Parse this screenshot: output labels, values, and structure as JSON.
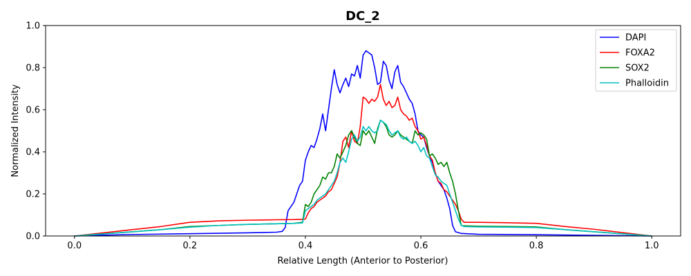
{
  "chart_data": {
    "type": "line",
    "title": "DC_2",
    "xlabel": "Relative Length (Anterior to Posterior)",
    "ylabel": "Normalized Intensity",
    "xlim": [
      -0.05,
      1.05
    ],
    "ylim": [
      0.0,
      1.0
    ],
    "xticks": [
      0.0,
      0.2,
      0.4,
      0.6,
      0.8,
      1.0
    ],
    "xtick_labels": [
      "0.0",
      "0.2",
      "0.4",
      "0.6",
      "0.8",
      "1.0"
    ],
    "yticks": [
      0.0,
      0.2,
      0.4,
      0.6,
      0.8,
      1.0
    ],
    "ytick_labels": [
      "0.0",
      "0.2",
      "0.4",
      "0.6",
      "0.8",
      "1.0"
    ],
    "grid": false,
    "legend_position": "top-right",
    "series": [
      {
        "name": "DAPI",
        "color": "#0000ff",
        "x": [
          0.0,
          0.05,
          0.1,
          0.15,
          0.2,
          0.25,
          0.3,
          0.35,
          0.36,
          0.365,
          0.37,
          0.375,
          0.38,
          0.385,
          0.39,
          0.395,
          0.4,
          0.405,
          0.41,
          0.415,
          0.42,
          0.425,
          0.43,
          0.435,
          0.44,
          0.445,
          0.45,
          0.455,
          0.46,
          0.465,
          0.47,
          0.475,
          0.48,
          0.485,
          0.49,
          0.495,
          0.5,
          0.505,
          0.51,
          0.515,
          0.52,
          0.525,
          0.53,
          0.535,
          0.54,
          0.545,
          0.55,
          0.555,
          0.56,
          0.565,
          0.57,
          0.575,
          0.58,
          0.585,
          0.59,
          0.595,
          0.6,
          0.605,
          0.61,
          0.615,
          0.62,
          0.625,
          0.63,
          0.635,
          0.64,
          0.645,
          0.65,
          0.655,
          0.66,
          0.67,
          0.7,
          0.8,
          0.9,
          1.0
        ],
        "y": [
          0.0,
          0.004,
          0.007,
          0.009,
          0.011,
          0.013,
          0.015,
          0.018,
          0.022,
          0.04,
          0.12,
          0.14,
          0.16,
          0.2,
          0.24,
          0.26,
          0.36,
          0.4,
          0.43,
          0.42,
          0.46,
          0.51,
          0.58,
          0.5,
          0.6,
          0.7,
          0.79,
          0.72,
          0.68,
          0.72,
          0.75,
          0.71,
          0.77,
          0.76,
          0.81,
          0.75,
          0.86,
          0.88,
          0.87,
          0.86,
          0.8,
          0.72,
          0.73,
          0.83,
          0.81,
          0.74,
          0.7,
          0.78,
          0.81,
          0.73,
          0.71,
          0.68,
          0.65,
          0.63,
          0.58,
          0.5,
          0.48,
          0.47,
          0.42,
          0.38,
          0.35,
          0.3,
          0.26,
          0.24,
          0.22,
          0.18,
          0.13,
          0.05,
          0.02,
          0.012,
          0.008,
          0.006,
          0.003,
          0.0
        ]
      },
      {
        "name": "FOXA2",
        "color": "#ff0000",
        "x": [
          0.0,
          0.05,
          0.1,
          0.15,
          0.2,
          0.25,
          0.3,
          0.35,
          0.38,
          0.4,
          0.405,
          0.41,
          0.415,
          0.42,
          0.425,
          0.43,
          0.435,
          0.44,
          0.445,
          0.45,
          0.455,
          0.46,
          0.465,
          0.47,
          0.475,
          0.48,
          0.485,
          0.49,
          0.495,
          0.5,
          0.505,
          0.51,
          0.515,
          0.52,
          0.525,
          0.53,
          0.535,
          0.54,
          0.545,
          0.55,
          0.555,
          0.56,
          0.565,
          0.57,
          0.575,
          0.58,
          0.585,
          0.59,
          0.595,
          0.6,
          0.605,
          0.61,
          0.615,
          0.62,
          0.625,
          0.63,
          0.635,
          0.64,
          0.645,
          0.65,
          0.655,
          0.66,
          0.665,
          0.67,
          0.675,
          0.7,
          0.75,
          0.8,
          0.85,
          0.9,
          0.95,
          1.0
        ],
        "y": [
          0.0,
          0.015,
          0.03,
          0.045,
          0.065,
          0.072,
          0.075,
          0.077,
          0.078,
          0.08,
          0.11,
          0.13,
          0.14,
          0.16,
          0.17,
          0.18,
          0.19,
          0.21,
          0.22,
          0.25,
          0.28,
          0.35,
          0.45,
          0.47,
          0.42,
          0.5,
          0.45,
          0.44,
          0.52,
          0.66,
          0.65,
          0.63,
          0.65,
          0.64,
          0.66,
          0.72,
          0.65,
          0.62,
          0.64,
          0.61,
          0.62,
          0.66,
          0.6,
          0.58,
          0.57,
          0.55,
          0.56,
          0.52,
          0.5,
          0.46,
          0.47,
          0.43,
          0.38,
          0.36,
          0.3,
          0.26,
          0.25,
          0.22,
          0.21,
          0.19,
          0.17,
          0.15,
          0.12,
          0.08,
          0.065,
          0.065,
          0.063,
          0.06,
          0.045,
          0.032,
          0.016,
          0.0
        ]
      },
      {
        "name": "SOX2",
        "color": "#008000",
        "x": [
          0.0,
          0.05,
          0.1,
          0.15,
          0.2,
          0.25,
          0.3,
          0.35,
          0.38,
          0.395,
          0.4,
          0.405,
          0.41,
          0.415,
          0.42,
          0.425,
          0.43,
          0.435,
          0.44,
          0.445,
          0.45,
          0.455,
          0.46,
          0.465,
          0.47,
          0.475,
          0.48,
          0.485,
          0.49,
          0.495,
          0.5,
          0.505,
          0.51,
          0.515,
          0.52,
          0.525,
          0.53,
          0.535,
          0.54,
          0.545,
          0.55,
          0.555,
          0.56,
          0.565,
          0.57,
          0.575,
          0.58,
          0.585,
          0.59,
          0.595,
          0.6,
          0.605,
          0.61,
          0.615,
          0.62,
          0.625,
          0.63,
          0.635,
          0.64,
          0.645,
          0.65,
          0.655,
          0.66,
          0.665,
          0.67,
          0.675,
          0.7,
          0.75,
          0.8,
          0.85,
          0.9,
          0.95,
          1.0
        ],
        "y": [
          0.0,
          0.01,
          0.02,
          0.03,
          0.045,
          0.05,
          0.055,
          0.058,
          0.06,
          0.065,
          0.15,
          0.14,
          0.16,
          0.2,
          0.22,
          0.24,
          0.28,
          0.27,
          0.3,
          0.3,
          0.33,
          0.39,
          0.37,
          0.4,
          0.43,
          0.48,
          0.5,
          0.47,
          0.44,
          0.43,
          0.5,
          0.48,
          0.5,
          0.47,
          0.44,
          0.51,
          0.55,
          0.54,
          0.52,
          0.48,
          0.47,
          0.48,
          0.5,
          0.48,
          0.47,
          0.46,
          0.45,
          0.44,
          0.5,
          0.48,
          0.49,
          0.48,
          0.46,
          0.38,
          0.39,
          0.37,
          0.34,
          0.35,
          0.33,
          0.35,
          0.3,
          0.26,
          0.2,
          0.12,
          0.05,
          0.048,
          0.046,
          0.045,
          0.043,
          0.03,
          0.02,
          0.01,
          0.0
        ]
      },
      {
        "name": "Phalloidin",
        "color": "#00bfbf",
        "x": [
          0.0,
          0.05,
          0.1,
          0.15,
          0.2,
          0.25,
          0.3,
          0.35,
          0.38,
          0.395,
          0.4,
          0.405,
          0.41,
          0.415,
          0.42,
          0.425,
          0.43,
          0.435,
          0.44,
          0.445,
          0.45,
          0.455,
          0.46,
          0.465,
          0.47,
          0.475,
          0.48,
          0.485,
          0.49,
          0.495,
          0.5,
          0.505,
          0.51,
          0.515,
          0.52,
          0.525,
          0.53,
          0.535,
          0.54,
          0.545,
          0.55,
          0.555,
          0.56,
          0.565,
          0.57,
          0.575,
          0.58,
          0.585,
          0.59,
          0.595,
          0.6,
          0.605,
          0.61,
          0.615,
          0.62,
          0.625,
          0.63,
          0.635,
          0.64,
          0.645,
          0.65,
          0.655,
          0.66,
          0.665,
          0.67,
          0.675,
          0.7,
          0.75,
          0.8,
          0.85,
          0.9,
          0.95,
          1.0
        ],
        "y": [
          0.0,
          0.01,
          0.02,
          0.03,
          0.042,
          0.05,
          0.055,
          0.058,
          0.06,
          0.062,
          0.12,
          0.13,
          0.14,
          0.15,
          0.17,
          0.18,
          0.19,
          0.2,
          0.22,
          0.24,
          0.26,
          0.3,
          0.35,
          0.37,
          0.35,
          0.4,
          0.46,
          0.48,
          0.45,
          0.47,
          0.52,
          0.5,
          0.52,
          0.5,
          0.49,
          0.5,
          0.55,
          0.54,
          0.53,
          0.5,
          0.48,
          0.49,
          0.5,
          0.47,
          0.46,
          0.47,
          0.45,
          0.44,
          0.45,
          0.43,
          0.4,
          0.42,
          0.38,
          0.37,
          0.33,
          0.29,
          0.28,
          0.26,
          0.25,
          0.24,
          0.2,
          0.16,
          0.12,
          0.08,
          0.05,
          0.045,
          0.043,
          0.042,
          0.04,
          0.03,
          0.02,
          0.01,
          0.0
        ]
      }
    ]
  }
}
